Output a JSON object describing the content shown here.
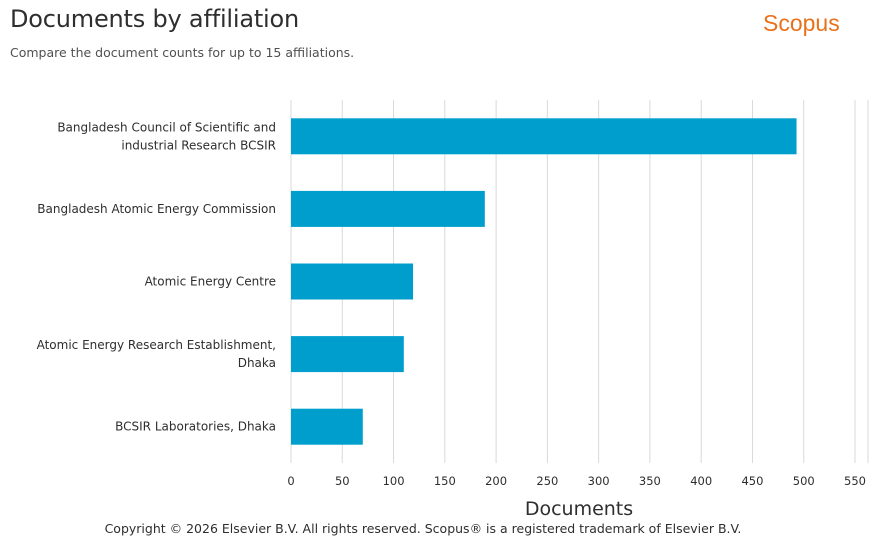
{
  "header": {
    "title": "Documents by affiliation",
    "subtitle": "Compare the document counts for up to 15 affiliations.",
    "brand": "Scopus"
  },
  "footer": {
    "copyright": "Copyright © 2026 Elsevier B.V. All rights reserved. Scopus® is a registered trademark of Elsevier B.V."
  },
  "colors": {
    "bar": "#009ecc",
    "brand": "#e9711c",
    "grid": "#d9d9d9"
  },
  "chart_data": {
    "type": "bar",
    "orientation": "horizontal",
    "title": "Documents by affiliation",
    "subtitle": "Compare the document counts for up to 15 affiliations.",
    "xlabel": "Documents",
    "ylabel": "",
    "categories": [
      [
        "Bangladesh Council of Scientific and",
        "industrial Research BCSIR"
      ],
      [
        "Bangladesh Atomic Energy Commission"
      ],
      [
        "Atomic Energy Centre"
      ],
      [
        "Atomic Energy Research Establishment,",
        "Dhaka"
      ],
      [
        "BCSIR Laboratories, Dhaka"
      ]
    ],
    "values": [
      493,
      189,
      119,
      110,
      70
    ],
    "xlim": [
      0,
      550
    ],
    "xticks": [
      0,
      50,
      100,
      150,
      200,
      250,
      300,
      350,
      400,
      450,
      500,
      550
    ],
    "grid": true,
    "legend": "none"
  }
}
